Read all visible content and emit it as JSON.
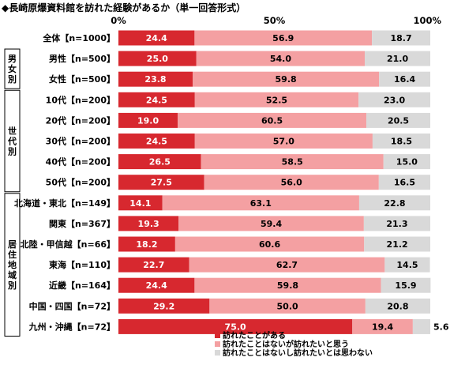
{
  "chart_data": {
    "type": "bar",
    "orientation": "horizontal",
    "stacked": true,
    "title": "◆長崎原爆資料館を訪れた経験があるか（単一回答形式）",
    "x_ticks": [
      "0%",
      "50%",
      "100%"
    ],
    "xlim": [
      0,
      100
    ],
    "groups": [
      {
        "name": "",
        "rows": [
          0
        ]
      },
      {
        "name": "男女別",
        "rows": [
          1,
          2
        ]
      },
      {
        "name": "世代別",
        "rows": [
          3,
          4,
          5,
          6,
          7
        ]
      },
      {
        "name": "居住地域別",
        "rows": [
          8,
          9,
          10,
          11,
          12,
          13,
          14
        ]
      }
    ],
    "categories": [
      "全体【n=1000】",
      "男性【n=500】",
      "女性【n=500】",
      "10代【n=200】",
      "20代【n=200】",
      "30代【n=200】",
      "40代【n=200】",
      "50代【n=200】",
      "北海道・東北【n=149】",
      "関東【n=367】",
      "北陸・甲信越【n=66】",
      "東海【n=110】",
      "近畿【n=164】",
      "中国・四国【n=72】",
      "九州・沖縄【n=72】"
    ],
    "series": [
      {
        "name": "訪れたことがある",
        "color": "#d7282f",
        "values": [
          24.4,
          25.0,
          23.8,
          24.5,
          19.0,
          24.5,
          26.5,
          27.5,
          14.1,
          19.3,
          18.2,
          22.7,
          24.4,
          29.2,
          75.0
        ]
      },
      {
        "name": "訪れたことはないが訪れたいと思う",
        "color": "#f4a0a2",
        "values": [
          56.9,
          54.0,
          59.8,
          52.5,
          60.5,
          57.0,
          58.5,
          56.0,
          63.1,
          59.4,
          60.6,
          62.7,
          59.8,
          50.0,
          19.4
        ]
      },
      {
        "name": "訪れたことはないし訪れたいとは思わない",
        "color": "#d9d9d9",
        "values": [
          18.7,
          21.0,
          16.4,
          23.0,
          20.5,
          18.5,
          15.0,
          16.5,
          22.8,
          21.3,
          21.2,
          14.5,
          15.9,
          20.8,
          5.6
        ]
      }
    ],
    "value_labels": [
      [
        "24.4",
        "25.0",
        "23.8",
        "24.5",
        "19.0",
        "24.5",
        "26.5",
        "27.5",
        "14.1",
        "19.3",
        "18.2",
        "22.7",
        "24.4",
        "29.2",
        "75.0"
      ],
      [
        "56.9",
        "54.0",
        "59.8",
        "52.5",
        "60.5",
        "57.0",
        "58.5",
        "56.0",
        "63.1",
        "59.4",
        "60.6",
        "62.7",
        "59.8",
        "50.0",
        "19.4"
      ],
      [
        "18.7",
        "21.0",
        "16.4",
        "23.0",
        "20.5",
        "18.5",
        "15.0",
        "16.5",
        "22.8",
        "21.3",
        "21.2",
        "14.5",
        "15.9",
        "20.8",
        "5.6"
      ]
    ],
    "value_label_colors": [
      "#ffffff",
      "#000000",
      "#000000"
    ],
    "legend_position": "bottom-right",
    "grid": false
  }
}
